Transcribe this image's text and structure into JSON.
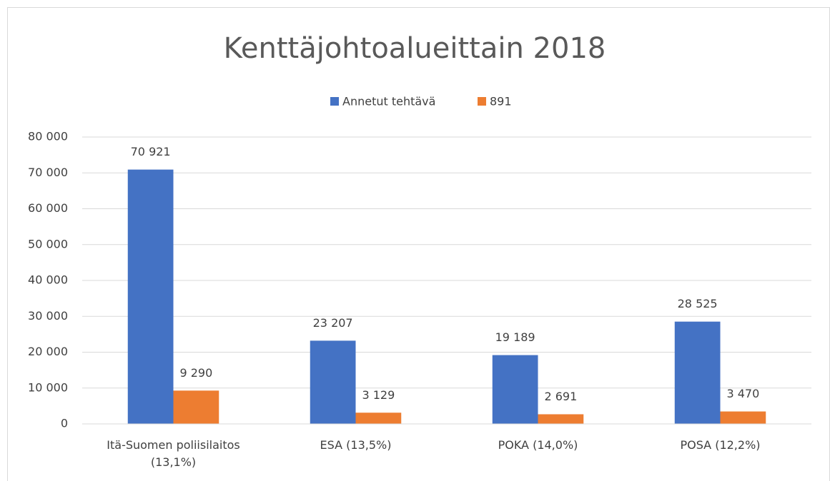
{
  "chart_data": {
    "type": "bar",
    "title": "Kenttäjohtoalueittain 2018",
    "categories": [
      "Itä-Suomen poliisilaitos (13,1%)",
      "ESA (13,5%)",
      "POKA (14,0%)",
      "POSA (12,2%)"
    ],
    "series": [
      {
        "name": "Annetut tehtävä",
        "color": "#4472c4",
        "values": [
          70921,
          23207,
          19189,
          28525
        ],
        "value_labels": [
          "70 921",
          "23 207",
          "19 189",
          "28 525"
        ]
      },
      {
        "name": "891",
        "color": "#ed7d31",
        "values": [
          9290,
          3129,
          2691,
          3470
        ],
        "value_labels": [
          "9 290",
          "3 129",
          "2 691",
          "3 470"
        ]
      }
    ],
    "ylim": [
      0,
      80000
    ],
    "yticks": [
      0,
      {
        "value": 10000,
        "label": "10 000"
      },
      {
        "value": 20000,
        "label": "20 000"
      },
      {
        "value": 30000,
        "label": "30 000"
      },
      {
        "value": 40000,
        "label": "40 000"
      },
      {
        "value": 50000,
        "label": "50 000"
      },
      {
        "value": 60000,
        "label": "60 000"
      },
      {
        "value": 70000,
        "label": "70 000"
      },
      {
        "value": 80000,
        "label": "80 000"
      }
    ],
    "grid": true,
    "legend": "top"
  }
}
